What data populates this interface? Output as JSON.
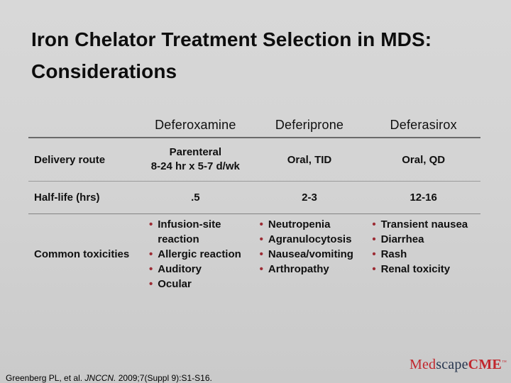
{
  "title": {
    "line1": "Iron Chelator Treatment Selection in MDS:",
    "line2": "Considerations"
  },
  "table": {
    "columns": [
      "Deferoxamine",
      "Deferiprone",
      "Deferasirox"
    ],
    "delivery": {
      "label": "Delivery route",
      "deferoxamine_line1": "Parenteral",
      "deferoxamine_line2": "8-24 hr x 5-7 d/wk",
      "deferiprone": "Oral, TID",
      "deferasirox": "Oral, QD"
    },
    "half_life": {
      "label": "Half-life (hrs)",
      "deferoxamine": ".5",
      "deferiprone": "2-3",
      "deferasirox": "12-16"
    },
    "toxicities": {
      "label": "Common toxicities",
      "deferoxamine": [
        "Infusion-site reaction",
        "Allergic reaction",
        "Auditory",
        "Ocular"
      ],
      "deferiprone": [
        "Neutropenia",
        "Agranulocytosis",
        "Nausea/vomiting",
        "Arthropathy"
      ],
      "deferasirox": [
        "Transient nausea",
        "Diarrhea",
        "Rash",
        "Renal toxicity"
      ]
    }
  },
  "footer": {
    "citation_pre": "Greenberg PL, et al. ",
    "citation_journal": "JNCCN.",
    "citation_post": " 2009;7(Suppl 9):S1-S16."
  },
  "logo": {
    "med": "Med",
    "scape": "scape",
    "cme": "CME",
    "tm": "™"
  },
  "colors": {
    "bullet": "#9C2B33",
    "logo_red": "#C1272D",
    "logo_navy": "#26354E",
    "background": "#D2D2D2",
    "title_text": "#0D0D0D"
  }
}
